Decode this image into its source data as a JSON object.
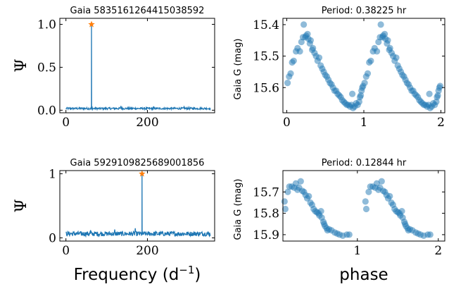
{
  "colors": {
    "series": "#1f77b4",
    "peak_marker": "#ff7f0e",
    "axis": "#000000"
  },
  "chart_data": [
    {
      "type": "line",
      "panel": "periodogram-top",
      "title": "Gaia 5835161264415038592",
      "xlabel": "",
      "ylabel": "Ψ",
      "xlim": [
        -15,
        365
      ],
      "ylim": [
        -0.03,
        1.07
      ],
      "xticks": [
        0,
        200
      ],
      "xtick_labels": [
        "0",
        "200"
      ],
      "yticks": [
        0.0,
        0.5,
        1.0
      ],
      "ytick_labels": [
        "0.0",
        "0.5",
        "1.0"
      ],
      "x_range": [
        0,
        355
      ],
      "noise_level": 0.025,
      "spikes": [
        {
          "x": 64,
          "y": 0.045
        },
        {
          "x": 135,
          "y": 0.05
        },
        {
          "x": 215,
          "y": 0.045
        },
        {
          "x": 290,
          "y": 0.04
        }
      ],
      "peak": {
        "x": 62.8,
        "y": 1.0
      }
    },
    {
      "type": "scatter",
      "panel": "lightcurve-top",
      "title": "Period: 0.38225 hr",
      "xlabel": "",
      "ylabel": "Gaia G (mag)",
      "xlim": [
        -0.05,
        2.05
      ],
      "ylim": [
        15.68,
        15.38
      ],
      "xticks": [
        0,
        1,
        2
      ],
      "xtick_labels": [
        "0",
        "1",
        "2"
      ],
      "yticks": [
        15.4,
        15.5,
        15.6
      ],
      "ytick_labels": [
        "15.4",
        "15.5",
        "15.6"
      ],
      "points_phase": [
        [
          0.01,
          15.585
        ],
        [
          0.03,
          15.565
        ],
        [
          0.05,
          15.555
        ],
        [
          0.07,
          15.52
        ],
        [
          0.09,
          15.515
        ],
        [
          0.12,
          15.485
        ],
        [
          0.14,
          15.475
        ],
        [
          0.17,
          15.485
        ],
        [
          0.19,
          15.455
        ],
        [
          0.21,
          15.44
        ],
        [
          0.22,
          15.4
        ],
        [
          0.24,
          15.44
        ],
        [
          0.25,
          15.435
        ],
        [
          0.27,
          15.43
        ],
        [
          0.28,
          15.445
        ],
        [
          0.3,
          15.46
        ],
        [
          0.31,
          15.45
        ],
        [
          0.33,
          15.48
        ],
        [
          0.34,
          15.475
        ],
        [
          0.36,
          15.49
        ],
        [
          0.38,
          15.5
        ],
        [
          0.4,
          15.515
        ],
        [
          0.42,
          15.505
        ],
        [
          0.44,
          15.53
        ],
        [
          0.46,
          15.54
        ],
        [
          0.48,
          15.55
        ],
        [
          0.5,
          15.56
        ],
        [
          0.52,
          15.565
        ],
        [
          0.54,
          15.575
        ],
        [
          0.56,
          15.585
        ],
        [
          0.58,
          15.59
        ],
        [
          0.6,
          15.6
        ],
        [
          0.62,
          15.61
        ],
        [
          0.64,
          15.61
        ],
        [
          0.66,
          15.62
        ],
        [
          0.68,
          15.625
        ],
        [
          0.7,
          15.63
        ],
        [
          0.72,
          15.64
        ],
        [
          0.74,
          15.645
        ],
        [
          0.76,
          15.65
        ],
        [
          0.78,
          15.655
        ],
        [
          0.8,
          15.655
        ],
        [
          0.82,
          15.66
        ],
        [
          0.84,
          15.655
        ],
        [
          0.85,
          15.62
        ],
        [
          0.86,
          15.665
        ],
        [
          0.88,
          15.66
        ],
        [
          0.9,
          15.65
        ],
        [
          0.92,
          15.655
        ],
        [
          0.94,
          15.645
        ],
        [
          0.95,
          15.63
        ],
        [
          0.96,
          15.625
        ],
        [
          0.97,
          15.61
        ],
        [
          0.98,
          15.6
        ],
        [
          0.99,
          15.595
        ]
      ]
    },
    {
      "type": "line",
      "panel": "periodogram-bottom",
      "title": "Gaia 5929109825689001856",
      "xlabel": "Frequency (d",
      "xlabel_sup": "−1",
      "xlabel_close": ")",
      "ylabel": "Ψ",
      "xlim": [
        -15,
        365
      ],
      "ylim": [
        -0.05,
        1.05
      ],
      "xticks": [
        0,
        200
      ],
      "xtick_labels": [
        "0",
        "200"
      ],
      "yticks": [
        0,
        1
      ],
      "ytick_labels": [
        "0",
        "1"
      ],
      "x_range": [
        0,
        355
      ],
      "noise_level": 0.08,
      "spikes": [
        {
          "x": 120,
          "y": 0.13
        },
        {
          "x": 170,
          "y": 0.15
        },
        {
          "x": 340,
          "y": 0.14
        },
        {
          "x": 60,
          "y": 0.12
        }
      ],
      "peak": {
        "x": 186.8,
        "y": 1.0
      }
    },
    {
      "type": "scatter",
      "panel": "lightcurve-bottom",
      "title": "Period: 0.12844 hr",
      "xlabel": "phase",
      "ylabel": "Gaia G (mag)",
      "xlim": [
        0.08,
        2.08
      ],
      "ylim": [
        15.93,
        15.6
      ],
      "xticks": [
        1,
        2
      ],
      "xtick_labels": [
        "1",
        "2"
      ],
      "yticks": [
        15.7,
        15.8,
        15.9
      ],
      "ytick_labels": [
        "15.7",
        "15.8",
        "15.9"
      ],
      "points_phase": [
        [
          0.1,
          15.745
        ],
        [
          0.11,
          15.78
        ],
        [
          0.14,
          15.7
        ],
        [
          0.16,
          15.675
        ],
        [
          0.19,
          15.675
        ],
        [
          0.22,
          15.68
        ],
        [
          0.24,
          15.66
        ],
        [
          0.26,
          15.69
        ],
        [
          0.28,
          15.68
        ],
        [
          0.3,
          15.65
        ],
        [
          0.32,
          15.695
        ],
        [
          0.34,
          15.7
        ],
        [
          0.36,
          15.715
        ],
        [
          0.38,
          15.73
        ],
        [
          0.4,
          15.72
        ],
        [
          0.42,
          15.75
        ],
        [
          0.44,
          15.76
        ],
        [
          0.46,
          15.78
        ],
        [
          0.48,
          15.79
        ],
        [
          0.5,
          15.795
        ],
        [
          0.52,
          15.8
        ],
        [
          0.53,
          15.81
        ],
        [
          0.55,
          15.79
        ],
        [
          0.56,
          15.82
        ],
        [
          0.58,
          15.84
        ],
        [
          0.59,
          15.85
        ],
        [
          0.6,
          15.86
        ],
        [
          0.62,
          15.87
        ],
        [
          0.63,
          15.88
        ],
        [
          0.65,
          15.875
        ],
        [
          0.68,
          15.88
        ],
        [
          0.72,
          15.89
        ],
        [
          0.75,
          15.895
        ],
        [
          0.78,
          15.9
        ],
        [
          0.82,
          15.905
        ],
        [
          0.87,
          15.9
        ],
        [
          0.9,
          15.9
        ]
      ]
    }
  ]
}
